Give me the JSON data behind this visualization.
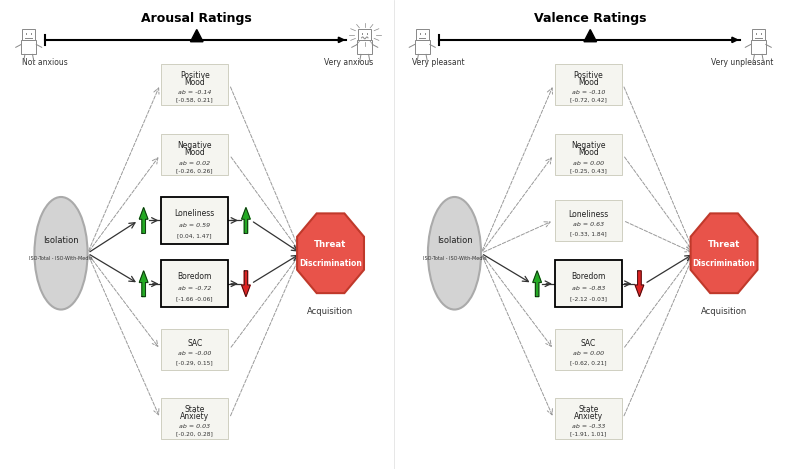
{
  "title_left": "Arousal Ratings",
  "title_right": "Valence Ratings",
  "scale_left": {
    "left_label": "Not anxious",
    "right_label": "Very anxious"
  },
  "scale_right": {
    "left_label": "Very pleasant",
    "right_label": "Very unpleasant"
  },
  "left_panel": {
    "mediators": [
      {
        "name": "Positive\nMood",
        "ab": "ab = -0.14",
        "ci": "[-0.58, 0.21]",
        "significant": false
      },
      {
        "name": "Negative\nMood",
        "ab": "ab = 0.02",
        "ci": "[-0.26, 0.26]",
        "significant": false
      },
      {
        "name": "Loneliness",
        "ab": "ab = 0.59",
        "ci": "[0.04, 1.47]",
        "significant": true,
        "arrow_left": "green_up",
        "arrow_right": "green_up"
      },
      {
        "name": "Boredom",
        "ab": "ab = -0.72",
        "ci": "[-1.66 -0.06]",
        "significant": true,
        "arrow_left": "green_up",
        "arrow_right": "red_down"
      },
      {
        "name": "SAC",
        "ab": "ab = -0.00",
        "ci": "[-0.29, 0.15]",
        "significant": false
      },
      {
        "name": "State\nAnxiety",
        "ab": "ab = 0.03",
        "ci": "[-0.20, 0.28]",
        "significant": false
      }
    ]
  },
  "right_panel": {
    "mediators": [
      {
        "name": "Positive\nMood",
        "ab": "ab = -0.10",
        "ci": "[-0.72, 0.42]",
        "significant": false
      },
      {
        "name": "Negative\nMood",
        "ab": "ab = 0.00",
        "ci": "[-0.25, 0.43]",
        "significant": false
      },
      {
        "name": "Loneliness",
        "ab": "ab = 0.63",
        "ci": "[-0.33, 1.84]",
        "significant": false
      },
      {
        "name": "Boredom",
        "ab": "ab = -0.83",
        "ci": "[-2.12 -0.03]",
        "significant": true,
        "arrow_left": "green_up",
        "arrow_right": "red_down"
      },
      {
        "name": "SAC",
        "ab": "ab = 0.00",
        "ci": "[-0.62, 0.21]",
        "significant": false
      },
      {
        "name": "State\nAnxiety",
        "ab": "ab = -0.33",
        "ci": "[-1.91, 1.01]",
        "significant": false
      }
    ]
  },
  "colors": {
    "background": "#ffffff",
    "octagon_fill": "#e8534a",
    "octagon_edge": "#c0392b",
    "circle_fill": "#d3d3d3",
    "circle_edge": "#aaaaaa",
    "box_fill": "#f5f5f0",
    "box_edge_significant": "#000000",
    "box_edge_normal": "#c8c8b8",
    "arrow_green": "#22aa22",
    "arrow_red": "#dd2222",
    "dashed_line": "#999999",
    "solid_arrow": "#333333"
  }
}
